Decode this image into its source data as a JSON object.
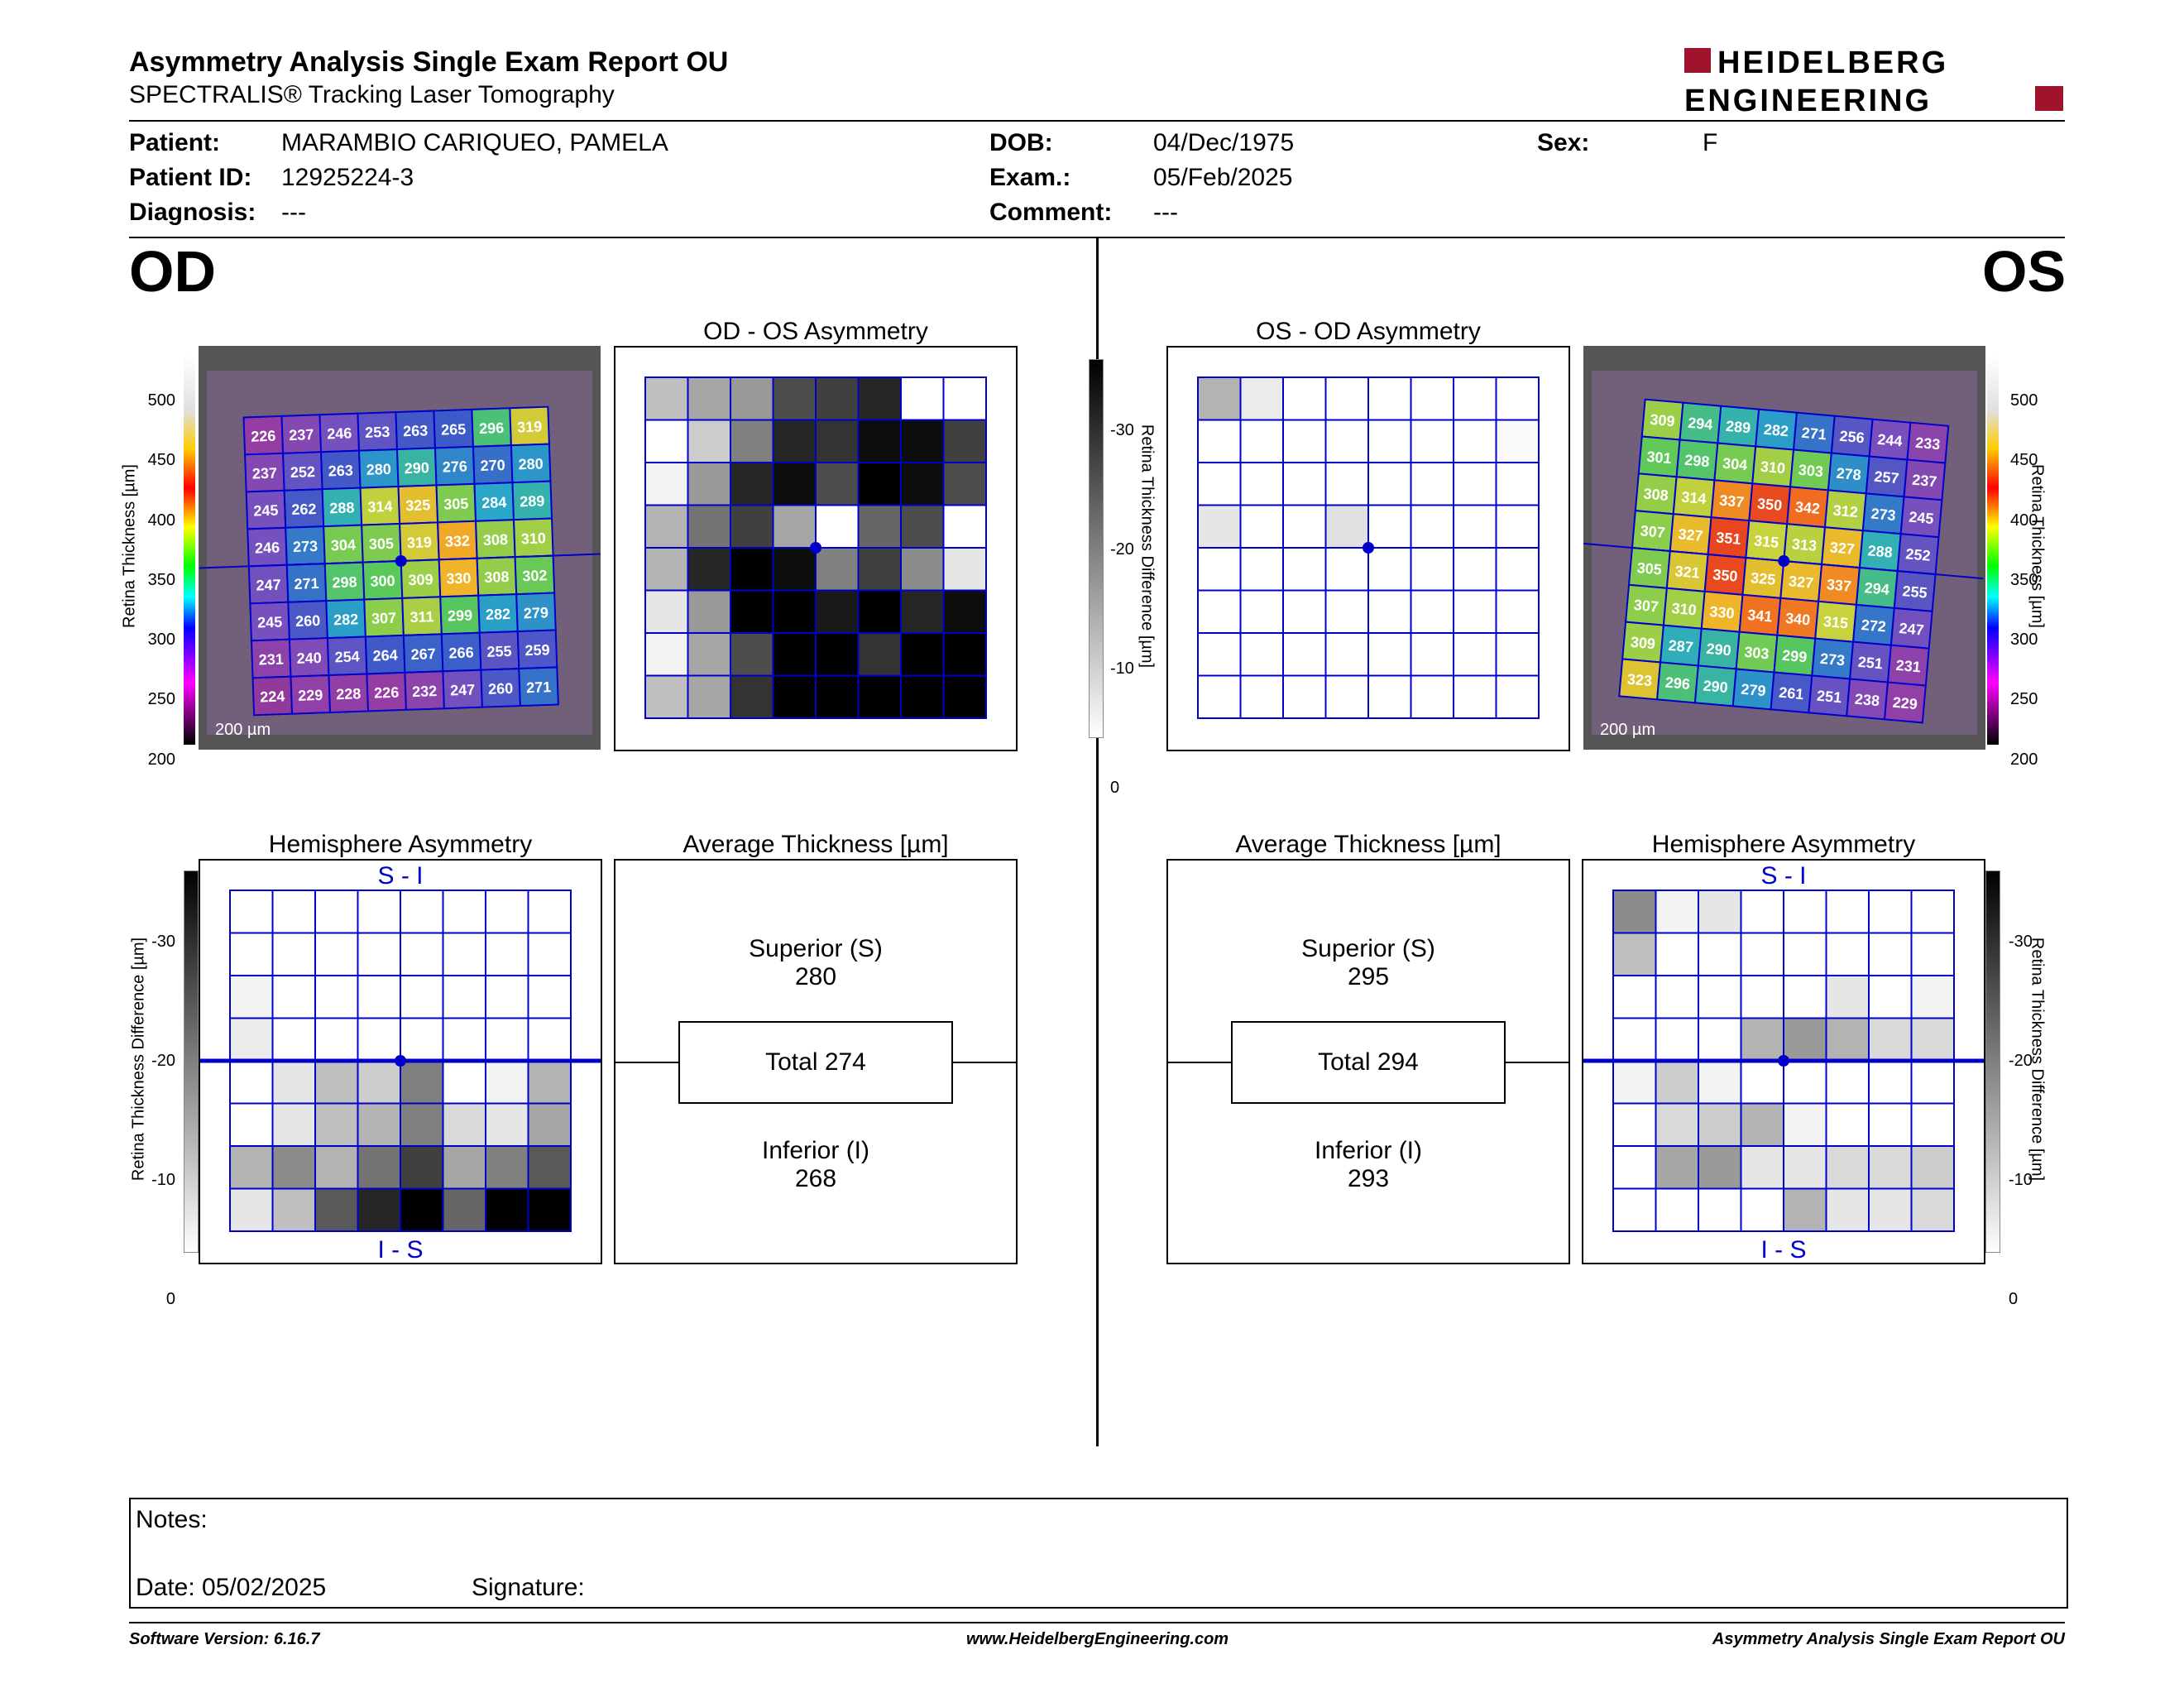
{
  "header": {
    "title": "Asymmetry Analysis Single Exam Report OU",
    "subtitle": "SPECTRALIS® Tracking Laser Tomography",
    "logo_line1": "HEIDELBERG",
    "logo_line2": "ENGINEERING"
  },
  "patient": {
    "patient_label": "Patient:",
    "patient_value": "MARAMBIO CARIQUEO, PAMELA",
    "id_label": "Patient ID:",
    "id_value": "12925224-3",
    "diagnosis_label": "Diagnosis:",
    "diagnosis_value": "---",
    "dob_label": "DOB:",
    "dob_value": "04/Dec/1975",
    "exam_label": "Exam.:",
    "exam_value": "05/Feb/2025",
    "comment_label": "Comment:",
    "comment_value": "---",
    "sex_label": "Sex:",
    "sex_value": "F"
  },
  "od": {
    "eye": "OD",
    "asym_title": "OD - OS Asymmetry",
    "hemi_title": "Hemisphere Asymmetry",
    "avg_title": "Average Thickness [µm]",
    "superior_label": "Superior (S)",
    "superior_value": "280",
    "total_label": "Total 274",
    "inferior_label": "Inferior (I)",
    "inferior_value": "268",
    "scale_label": "200 µm",
    "thickness_grid": [
      [
        226,
        237,
        246,
        253,
        263,
        265,
        296,
        319
      ],
      [
        237,
        252,
        263,
        280,
        290,
        276,
        270,
        280
      ],
      [
        245,
        262,
        288,
        314,
        325,
        305,
        284,
        289
      ],
      [
        246,
        273,
        304,
        305,
        319,
        332,
        308,
        310
      ],
      [
        247,
        271,
        298,
        300,
        309,
        330,
        308,
        302
      ],
      [
        245,
        260,
        282,
        307,
        311,
        299,
        282,
        279
      ],
      [
        231,
        240,
        254,
        264,
        267,
        266,
        255,
        259
      ],
      [
        224,
        229,
        228,
        226,
        232,
        247,
        260,
        271
      ]
    ],
    "asym_grid": [
      [
        0.25,
        0.35,
        0.4,
        0.7,
        0.75,
        0.85,
        0,
        0
      ],
      [
        0,
        0.2,
        0.5,
        0.85,
        0.8,
        0.95,
        0.95,
        0.75
      ],
      [
        0.05,
        0.4,
        0.85,
        0.95,
        0.7,
        1,
        0.95,
        0.7
      ],
      [
        0.3,
        0.55,
        0.75,
        0.35,
        0,
        0.6,
        0.7,
        0
      ],
      [
        0.3,
        0.85,
        1,
        0.95,
        0.5,
        0.75,
        0.45,
        0.1
      ],
      [
        0.1,
        0.4,
        1,
        1,
        0.9,
        1,
        0.85,
        0.95
      ],
      [
        0.05,
        0.35,
        0.7,
        1,
        1,
        0.8,
        1,
        1
      ],
      [
        0.25,
        0.35,
        0.8,
        1,
        1,
        1,
        1,
        1
      ]
    ],
    "hemi_grid": [
      [
        0,
        0,
        0,
        0,
        0,
        0,
        0,
        0
      ],
      [
        0,
        0,
        0,
        0,
        0,
        0,
        0,
        0
      ],
      [
        0.05,
        0,
        0,
        0,
        0,
        0,
        0,
        0
      ],
      [
        0.08,
        0,
        0,
        0,
        0,
        0,
        0,
        0
      ],
      [
        0,
        0.1,
        0.25,
        0.2,
        0.5,
        0,
        0.05,
        0.3
      ],
      [
        0,
        0.1,
        0.25,
        0.3,
        0.5,
        0.15,
        0.1,
        0.35
      ],
      [
        0.3,
        0.45,
        0.3,
        0.55,
        0.75,
        0.35,
        0.5,
        0.65
      ],
      [
        0.1,
        0.25,
        0.65,
        0.85,
        1,
        0.6,
        1,
        1
      ]
    ],
    "hemi_top": "S - I",
    "hemi_bottom": "I - S"
  },
  "os": {
    "eye": "OS",
    "asym_title": "OS - OD Asymmetry",
    "hemi_title": "Hemisphere Asymmetry",
    "avg_title": "Average Thickness [µm]",
    "superior_label": "Superior (S)",
    "superior_value": "295",
    "total_label": "Total 294",
    "inferior_label": "Inferior (I)",
    "inferior_value": "293",
    "scale_label": "200 µm",
    "thickness_grid": [
      [
        309,
        294,
        289,
        282,
        271,
        256,
        244,
        233
      ],
      [
        301,
        298,
        304,
        310,
        303,
        278,
        257,
        237
      ],
      [
        308,
        314,
        337,
        350,
        342,
        312,
        273,
        245
      ],
      [
        307,
        327,
        351,
        315,
        313,
        327,
        288,
        252
      ],
      [
        305,
        321,
        350,
        325,
        327,
        337,
        294,
        255
      ],
      [
        307,
        310,
        330,
        341,
        340,
        315,
        272,
        247
      ],
      [
        309,
        287,
        290,
        303,
        299,
        273,
        251,
        231
      ],
      [
        323,
        296,
        290,
        279,
        261,
        251,
        238,
        229
      ]
    ],
    "asym_grid": [
      [
        0.3,
        0.08,
        0,
        0,
        0,
        0,
        0,
        0
      ],
      [
        0,
        0,
        0,
        0,
        0,
        0,
        0,
        0.02
      ],
      [
        0,
        0,
        0,
        0,
        0,
        0,
        0,
        0
      ],
      [
        0.1,
        0,
        0,
        0.12,
        0,
        0,
        0,
        0
      ],
      [
        0,
        0,
        0,
        0,
        0,
        0,
        0,
        0
      ],
      [
        0,
        0,
        0,
        0,
        0,
        0,
        0,
        0
      ],
      [
        0,
        0,
        0,
        0,
        0,
        0,
        0,
        0
      ],
      [
        0,
        0,
        0,
        0,
        0,
        0,
        0,
        0
      ]
    ],
    "hemi_grid": [
      [
        0.45,
        0.05,
        0.1,
        0,
        0,
        0,
        0,
        0
      ],
      [
        0.25,
        0,
        0,
        0,
        0,
        0,
        0,
        0
      ],
      [
        0,
        0,
        0,
        0,
        0,
        0.1,
        0,
        0.05
      ],
      [
        0,
        0,
        0,
        0.3,
        0.4,
        0.3,
        0.15,
        0.15
      ],
      [
        0.05,
        0.2,
        0.05,
        0,
        0,
        0,
        0,
        0
      ],
      [
        0,
        0.15,
        0.2,
        0.3,
        0.05,
        0,
        0,
        0
      ],
      [
        0,
        0.35,
        0.4,
        0.1,
        0.1,
        0.15,
        0.15,
        0.2
      ],
      [
        0,
        0,
        0,
        0,
        0.3,
        0.1,
        0.1,
        0.15
      ]
    ],
    "hemi_top": "S - I",
    "hemi_bottom": "I - S"
  },
  "thickness_scale": {
    "ticks": [
      "500",
      "450",
      "400",
      "350",
      "300",
      "250",
      "200"
    ],
    "label": "Retina Thickness [µm]"
  },
  "diff_scale": {
    "ticks": [
      "-30",
      "-20",
      "-10",
      "0"
    ],
    "label": "Retina Thickness Difference [µm]"
  },
  "notes": {
    "notes_label": "Notes:",
    "date_label": "Date: 05/02/2025",
    "signature_label": "Signature:"
  },
  "footer": {
    "version": "Software Version: 6.16.7",
    "website": "www.HeidelbergEngineering.com",
    "report": "Asymmetry Analysis Single Exam Report OU"
  },
  "colors": {
    "grid_blue": "#0000cc",
    "brand_red": "#a0132d"
  }
}
